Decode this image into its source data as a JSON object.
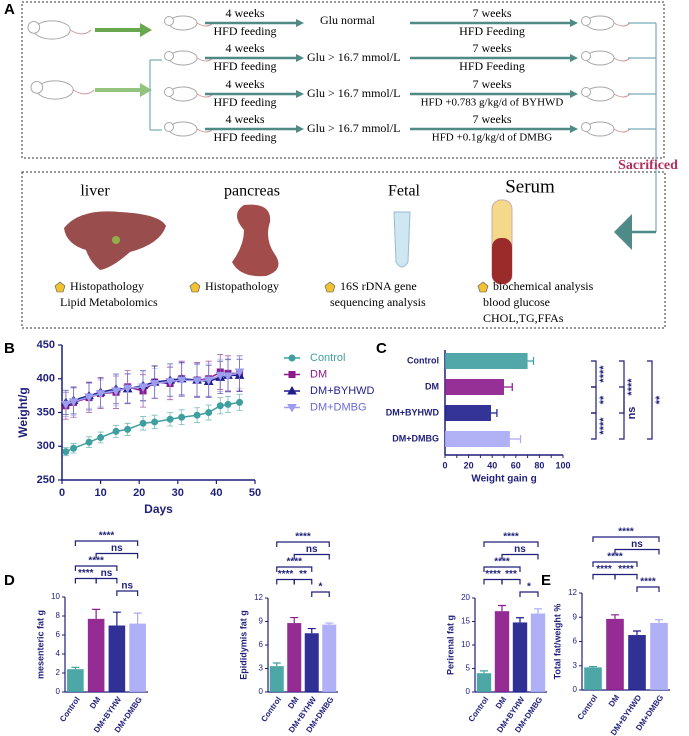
{
  "panel_labels": [
    "A",
    "B",
    "C",
    "D",
    "E"
  ],
  "diagram": {
    "rows": [
      {
        "duration1": "4 weeks",
        "feeding1": "HFD feeding",
        "glucose": "Glu normal",
        "duration2": "7 weeks",
        "feeding2": "HFD Feeding"
      },
      {
        "duration1": "4 weeks",
        "feeding1": "HFD feeding",
        "glucose": "Glu > 16.7 mmol/L",
        "duration2": "7 weeks",
        "feeding2": "HFD Feeding"
      },
      {
        "duration1": "4 weeks",
        "feeding1": "HFD feeding",
        "glucose": "Glu > 16.7 mmol/L",
        "duration2": "7 weeks",
        "feeding2": "HFD +0.783 g/kg/d of BYHWD"
      },
      {
        "duration1": "4 weeks",
        "feeding1": "HFD feeding",
        "glucose": "Glu > 16.7 mmol/L",
        "duration2": "7 weeks",
        "feeding2": "HFD +0.1g/kg/d of DMBG"
      }
    ],
    "sacrificed": "Sacrificed",
    "outputs": [
      {
        "title": "liver",
        "items": [
          "Histopathology",
          "Lipid Metabolomics"
        ]
      },
      {
        "title": "pancreas",
        "items": [
          "Histopathology"
        ]
      },
      {
        "title": "Fetal",
        "items": [
          "16S rDNA gene",
          "sequencing analysis"
        ]
      },
      {
        "title": "Serum",
        "items": [
          "biochemical analysis",
          "blood glucose",
          "CHOL,TG,FFAs"
        ]
      }
    ]
  },
  "chart_data": [
    {
      "type": "line",
      "x_label": "Days",
      "y_label": "Weight/g",
      "x": [
        1,
        3,
        7,
        10,
        14,
        17,
        21,
        24,
        28,
        31,
        35,
        38,
        41,
        43,
        46
      ],
      "series": [
        {
          "name": "Control",
          "color": "#3f9fa0",
          "marker": "circle",
          "values": [
            292,
            297,
            306,
            313,
            322,
            325,
            334,
            336,
            340,
            343,
            346,
            350,
            360,
            362,
            365
          ],
          "errors": [
            6,
            7,
            8,
            8,
            9,
            9,
            10,
            10,
            10,
            11,
            11,
            11,
            12,
            12,
            12
          ]
        },
        {
          "name": "DM",
          "color": "#8b1a8b",
          "marker": "square",
          "values": [
            360,
            365,
            372,
            378,
            380,
            388,
            382,
            395,
            393,
            400,
            398,
            400,
            410,
            408,
            408
          ],
          "errors": [
            20,
            22,
            22,
            22,
            24,
            24,
            24,
            24,
            24,
            26,
            26,
            26,
            26,
            26,
            26
          ]
        },
        {
          "name": "DM+BYHWD",
          "color": "#1e1e8c",
          "marker": "triangle",
          "values": [
            365,
            368,
            375,
            380,
            385,
            385,
            390,
            395,
            398,
            400,
            398,
            396,
            402,
            405,
            405
          ],
          "errors": [
            18,
            20,
            20,
            22,
            22,
            22,
            22,
            24,
            24,
            24,
            24,
            24,
            24,
            24,
            24
          ]
        },
        {
          "name": "DM+DMBG",
          "color": "#9d9df0",
          "marker": "triangle-down",
          "values": [
            362,
            366,
            373,
            378,
            382,
            386,
            388,
            393,
            396,
            398,
            397,
            398,
            405,
            404,
            410
          ],
          "errors": [
            18,
            20,
            20,
            20,
            22,
            22,
            22,
            22,
            22,
            24,
            24,
            24,
            24,
            24,
            24
          ]
        }
      ],
      "xlim": [
        0,
        50
      ],
      "xticks": [
        0,
        10,
        20,
        30,
        40,
        50
      ],
      "ylim": [
        250,
        450
      ],
      "yticks": [
        250,
        300,
        350,
        400,
        450
      ]
    },
    {
      "type": "bar",
      "orientation": "horizontal",
      "x_label": "Weight gain g",
      "categories": [
        "Control",
        "DM",
        "DM+BYHWD",
        "DM+DMBG"
      ],
      "values": [
        70,
        50,
        39,
        55
      ],
      "errors": [
        5,
        7,
        5,
        9
      ],
      "colors": [
        "#3f9fa0",
        "#8b1a8b",
        "#1e1e8c",
        "#a9a9f5"
      ],
      "xlim": [
        0,
        100
      ],
      "xticks": [
        0,
        10,
        20,
        30,
        40,
        50,
        60,
        70,
        80,
        90,
        100
      ],
      "annotations": [
        "****",
        "****",
        "**",
        "ns",
        "****",
        "**"
      ]
    },
    {
      "type": "bar",
      "y_label": "mesenteric fat g",
      "categories": [
        "Control",
        "DM",
        "DM+BYHW",
        "DM+DMBG"
      ],
      "values": [
        2.4,
        7.7,
        7.0,
        7.2
      ],
      "errors": [
        0.2,
        1.0,
        1.4,
        1.1
      ],
      "colors": [
        "#3f9fa0",
        "#8b1a8b",
        "#1e1e8c",
        "#a9a9f5"
      ],
      "ylim": [
        0,
        10
      ],
      "yticks": [
        0,
        2,
        4,
        6,
        8,
        10
      ],
      "annotations": [
        "****",
        "ns",
        "****",
        "****",
        "ns",
        "ns"
      ]
    },
    {
      "type": "bar",
      "y_label": "Epididymis fat g",
      "categories": [
        "Control",
        "DM",
        "DM+BYHW",
        "DM+DMBG"
      ],
      "values": [
        3.3,
        8.8,
        7.5,
        8.6
      ],
      "errors": [
        0.4,
        0.7,
        0.6,
        0.2
      ],
      "colors": [
        "#3f9fa0",
        "#8b1a8b",
        "#1e1e8c",
        "#a9a9f5"
      ],
      "ylim": [
        0,
        12
      ],
      "yticks": [
        0,
        3,
        6,
        9,
        12
      ],
      "annotations": [
        "****",
        "ns",
        "****",
        "****",
        "**",
        "*"
      ]
    },
    {
      "type": "bar",
      "y_label": "Perirenal fat g",
      "categories": [
        "Control",
        "DM",
        "DM+BYHW",
        "DM+DMBG"
      ],
      "values": [
        4.0,
        17.2,
        14.8,
        16.7
      ],
      "errors": [
        0.5,
        1.2,
        1.0,
        1.0
      ],
      "colors": [
        "#3f9fa0",
        "#8b1a8b",
        "#1e1e8c",
        "#a9a9f5"
      ],
      "ylim": [
        0,
        20
      ],
      "yticks": [
        0,
        5,
        10,
        15,
        20
      ],
      "annotations": [
        "****",
        "ns",
        "****",
        "****",
        "***",
        "*"
      ]
    },
    {
      "type": "bar",
      "y_label": "Total fat/weight %",
      "categories": [
        "Control",
        "DM",
        "DM+BYHWD",
        "DM+DMBG"
      ],
      "values": [
        2.8,
        8.8,
        6.8,
        8.3
      ],
      "errors": [
        0.1,
        0.5,
        0.5,
        0.4
      ],
      "colors": [
        "#3f9fa0",
        "#8b1a8b",
        "#1e1e8c",
        "#a9a9f5"
      ],
      "ylim": [
        0,
        12
      ],
      "yticks": [
        0,
        3,
        6,
        9,
        12
      ],
      "annotations": [
        "****",
        "ns",
        "****",
        "****",
        "****",
        "****"
      ]
    }
  ]
}
